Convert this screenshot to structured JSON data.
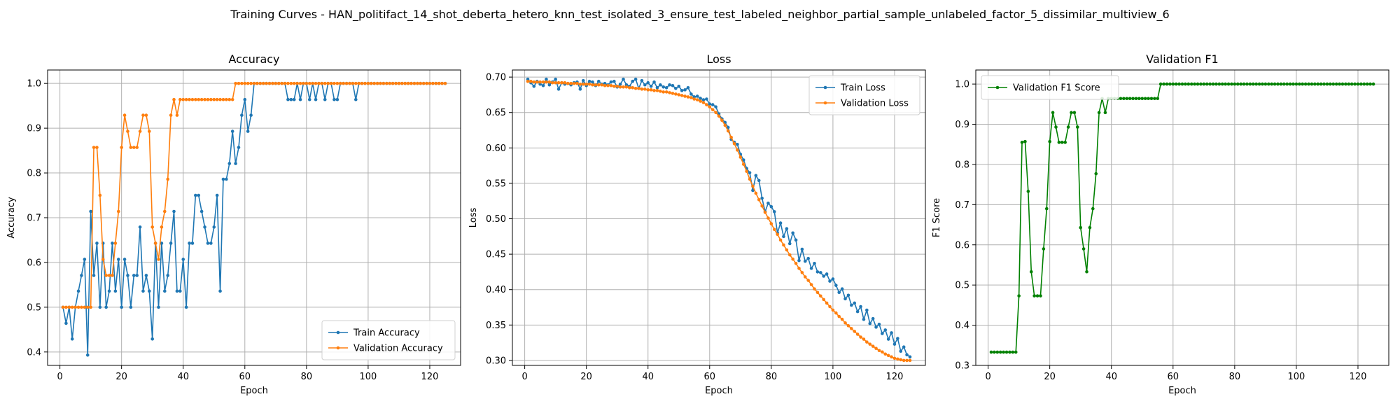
{
  "figure": {
    "suptitle": "Training Curves - HAN_politifact_14_shot_deberta_hetero_knn_test_isolated_3_ensure_test_labeled_neighbor_partial_sample_unlabeled_factor_5_dissimilar_multiview_6"
  },
  "colors": {
    "blue": "#1f77b4",
    "orange": "#ff7f0e",
    "green": "#008000",
    "grid": "#b0b0b0"
  },
  "chart_data": [
    {
      "type": "line",
      "title": "Accuracy",
      "xlabel": "Epoch",
      "ylabel": "Accuracy",
      "xlim": [
        -4,
        130
      ],
      "ylim": [
        0.37,
        1.03
      ],
      "xticks": [
        0,
        20,
        40,
        60,
        80,
        100,
        120
      ],
      "yticks": [
        0.4,
        0.5,
        0.6,
        0.7,
        0.8,
        0.9,
        1.0
      ],
      "grid": true,
      "legend": "lower-right",
      "series": [
        {
          "name": "Train Accuracy",
          "color": "#1f77b4",
          "x_start": 1,
          "values": [
            0.5,
            0.464,
            0.5,
            0.429,
            0.5,
            0.536,
            0.571,
            0.607,
            0.393,
            0.714,
            0.571,
            0.643,
            0.5,
            0.643,
            0.5,
            0.536,
            0.643,
            0.536,
            0.607,
            0.5,
            0.607,
            0.571,
            0.5,
            0.571,
            0.571,
            0.679,
            0.536,
            0.571,
            0.536,
            0.429,
            0.643,
            0.5,
            0.643,
            0.536,
            0.571,
            0.643,
            0.714,
            0.536,
            0.536,
            0.607,
            0.5,
            0.643,
            0.643,
            0.75,
            0.75,
            0.714,
            0.679,
            0.643,
            0.643,
            0.679,
            0.75,
            0.536,
            0.786,
            0.786,
            0.821,
            0.893,
            0.821,
            0.857,
            0.929,
            0.964,
            0.893,
            0.929,
            1.0,
            1.0,
            1.0,
            1.0,
            1.0,
            1.0,
            1.0,
            1.0,
            1.0,
            1.0,
            1.0,
            0.964,
            0.964,
            0.964,
            1.0,
            0.964,
            1.0,
            1.0,
            0.964,
            1.0,
            0.964,
            1.0,
            1.0,
            0.964,
            1.0,
            1.0,
            0.964,
            0.964,
            1.0,
            1.0,
            1.0,
            1.0,
            1.0,
            0.964,
            1.0,
            1.0,
            1.0,
            1.0,
            1.0,
            1.0,
            1.0,
            1.0,
            1.0,
            1.0,
            1.0,
            1.0,
            1.0,
            1.0,
            1.0,
            1.0,
            1.0,
            1.0,
            1.0,
            1.0,
            1.0,
            1.0,
            1.0,
            1.0,
            1.0,
            1.0,
            1.0,
            1.0,
            1.0
          ]
        },
        {
          "name": "Validation Accuracy",
          "color": "#ff7f0e",
          "x_start": 1,
          "values": [
            0.5,
            0.5,
            0.5,
            0.5,
            0.5,
            0.5,
            0.5,
            0.5,
            0.5,
            0.5,
            0.857,
            0.857,
            0.75,
            0.607,
            0.571,
            0.571,
            0.571,
            0.643,
            0.714,
            0.857,
            0.929,
            0.893,
            0.857,
            0.857,
            0.857,
            0.893,
            0.929,
            0.929,
            0.893,
            0.679,
            0.643,
            0.607,
            0.679,
            0.714,
            0.786,
            0.929,
            0.964,
            0.929,
            0.964,
            0.964,
            0.964,
            0.964,
            0.964,
            0.964,
            0.964,
            0.964,
            0.964,
            0.964,
            0.964,
            0.964,
            0.964,
            0.964,
            0.964,
            0.964,
            0.964,
            0.964,
            1.0,
            1.0,
            1.0,
            1.0,
            1.0,
            1.0,
            1.0,
            1.0,
            1.0,
            1.0,
            1.0,
            1.0,
            1.0,
            1.0,
            1.0,
            1.0,
            1.0,
            1.0,
            1.0,
            1.0,
            1.0,
            1.0,
            1.0,
            1.0,
            1.0,
            1.0,
            1.0,
            1.0,
            1.0,
            1.0,
            1.0,
            1.0,
            1.0,
            1.0,
            1.0,
            1.0,
            1.0,
            1.0,
            1.0,
            1.0,
            1.0,
            1.0,
            1.0,
            1.0,
            1.0,
            1.0,
            1.0,
            1.0,
            1.0,
            1.0,
            1.0,
            1.0,
            1.0,
            1.0,
            1.0,
            1.0,
            1.0,
            1.0,
            1.0,
            1.0,
            1.0,
            1.0,
            1.0,
            1.0,
            1.0,
            1.0,
            1.0,
            1.0,
            1.0
          ]
        }
      ]
    },
    {
      "type": "line",
      "title": "Loss",
      "xlabel": "Epoch",
      "ylabel": "Loss",
      "xlim": [
        -4,
        130
      ],
      "ylim": [
        0.293,
        0.71
      ],
      "xticks": [
        0,
        20,
        40,
        60,
        80,
        100,
        120
      ],
      "yticks": [
        0.3,
        0.35,
        0.4,
        0.45,
        0.5,
        0.55,
        0.6,
        0.65,
        0.7
      ],
      "grid": true,
      "legend": "top-right",
      "series": [
        {
          "name": "Train Loss",
          "color": "#1f77b4",
          "x_start": 1,
          "values": [
            0.697,
            0.692,
            0.687,
            0.694,
            0.69,
            0.688,
            0.697,
            0.689,
            0.693,
            0.697,
            0.683,
            0.692,
            0.69,
            0.691,
            0.689,
            0.692,
            0.693,
            0.683,
            0.695,
            0.688,
            0.694,
            0.693,
            0.688,
            0.694,
            0.69,
            0.691,
            0.689,
            0.693,
            0.694,
            0.686,
            0.69,
            0.697,
            0.689,
            0.687,
            0.694,
            0.697,
            0.684,
            0.695,
            0.689,
            0.692,
            0.687,
            0.693,
            0.685,
            0.689,
            0.686,
            0.685,
            0.689,
            0.688,
            0.684,
            0.687,
            0.681,
            0.682,
            0.685,
            0.676,
            0.672,
            0.673,
            0.67,
            0.668,
            0.669,
            0.662,
            0.661,
            0.658,
            0.648,
            0.641,
            0.636,
            0.629,
            0.612,
            0.608,
            0.605,
            0.591,
            0.583,
            0.571,
            0.565,
            0.54,
            0.561,
            0.554,
            0.529,
            0.51,
            0.522,
            0.517,
            0.51,
            0.48,
            0.494,
            0.475,
            0.486,
            0.465,
            0.48,
            0.47,
            0.441,
            0.457,
            0.44,
            0.444,
            0.43,
            0.437,
            0.425,
            0.424,
            0.419,
            0.422,
            0.412,
            0.415,
            0.406,
            0.396,
            0.401,
            0.387,
            0.392,
            0.378,
            0.381,
            0.369,
            0.376,
            0.358,
            0.371,
            0.352,
            0.359,
            0.347,
            0.351,
            0.338,
            0.343,
            0.33,
            0.339,
            0.323,
            0.331,
            0.313,
            0.319,
            0.308,
            0.305
          ]
        },
        {
          "name": "Validation Loss",
          "color": "#ff7f0e",
          "x_start": 1,
          "values": [
            0.694,
            0.694,
            0.693,
            0.693,
            0.693,
            0.693,
            0.693,
            0.693,
            0.692,
            0.692,
            0.692,
            0.692,
            0.692,
            0.691,
            0.691,
            0.691,
            0.691,
            0.69,
            0.69,
            0.69,
            0.69,
            0.689,
            0.689,
            0.689,
            0.689,
            0.688,
            0.688,
            0.688,
            0.687,
            0.687,
            0.686,
            0.686,
            0.686,
            0.685,
            0.685,
            0.684,
            0.684,
            0.683,
            0.683,
            0.682,
            0.682,
            0.681,
            0.681,
            0.68,
            0.679,
            0.679,
            0.678,
            0.677,
            0.676,
            0.675,
            0.674,
            0.673,
            0.672,
            0.671,
            0.669,
            0.668,
            0.666,
            0.664,
            0.661,
            0.658,
            0.654,
            0.65,
            0.645,
            0.639,
            0.632,
            0.624,
            0.615,
            0.606,
            0.597,
            0.587,
            0.577,
            0.567,
            0.556,
            0.546,
            0.536,
            0.527,
            0.518,
            0.509,
            0.501,
            0.493,
            0.485,
            0.478,
            0.47,
            0.463,
            0.456,
            0.449,
            0.443,
            0.437,
            0.43,
            0.424,
            0.418,
            0.413,
            0.407,
            0.401,
            0.396,
            0.391,
            0.386,
            0.381,
            0.376,
            0.371,
            0.367,
            0.362,
            0.358,
            0.353,
            0.349,
            0.345,
            0.341,
            0.337,
            0.333,
            0.33,
            0.326,
            0.323,
            0.32,
            0.317,
            0.314,
            0.312,
            0.309,
            0.307,
            0.305,
            0.303,
            0.302,
            0.301,
            0.3,
            0.3,
            0.3
          ]
        }
      ]
    },
    {
      "type": "line",
      "title": "Validation F1",
      "xlabel": "Epoch",
      "ylabel": "F1 Score",
      "xlim": [
        -4,
        130
      ],
      "ylim": [
        0.3,
        1.035
      ],
      "xticks": [
        0,
        20,
        40,
        60,
        80,
        100,
        120
      ],
      "yticks": [
        0.3,
        0.4,
        0.5,
        0.6,
        0.7,
        0.8,
        0.9,
        1.0
      ],
      "grid": true,
      "legend": "top-left",
      "series": [
        {
          "name": "Validation F1 Score",
          "color": "#008000",
          "x_start": 1,
          "values": [
            0.333,
            0.333,
            0.333,
            0.333,
            0.333,
            0.333,
            0.333,
            0.333,
            0.333,
            0.473,
            0.855,
            0.857,
            0.733,
            0.533,
            0.473,
            0.473,
            0.473,
            0.59,
            0.69,
            0.857,
            0.929,
            0.893,
            0.855,
            0.855,
            0.855,
            0.893,
            0.929,
            0.929,
            0.893,
            0.643,
            0.59,
            0.533,
            0.643,
            0.69,
            0.777,
            0.929,
            0.964,
            0.929,
            0.964,
            0.964,
            0.964,
            0.964,
            0.964,
            0.964,
            0.964,
            0.964,
            0.964,
            0.964,
            0.964,
            0.964,
            0.964,
            0.964,
            0.964,
            0.964,
            0.964,
            1.0,
            1.0,
            1.0,
            1.0,
            1.0,
            1.0,
            1.0,
            1.0,
            1.0,
            1.0,
            1.0,
            1.0,
            1.0,
            1.0,
            1.0,
            1.0,
            1.0,
            1.0,
            1.0,
            1.0,
            1.0,
            1.0,
            1.0,
            1.0,
            1.0,
            1.0,
            1.0,
            1.0,
            1.0,
            1.0,
            1.0,
            1.0,
            1.0,
            1.0,
            1.0,
            1.0,
            1.0,
            1.0,
            1.0,
            1.0,
            1.0,
            1.0,
            1.0,
            1.0,
            1.0,
            1.0,
            1.0,
            1.0,
            1.0,
            1.0,
            1.0,
            1.0,
            1.0,
            1.0,
            1.0,
            1.0,
            1.0,
            1.0,
            1.0,
            1.0,
            1.0,
            1.0,
            1.0,
            1.0,
            1.0,
            1.0,
            1.0,
            1.0,
            1.0,
            1.0
          ]
        }
      ]
    }
  ]
}
